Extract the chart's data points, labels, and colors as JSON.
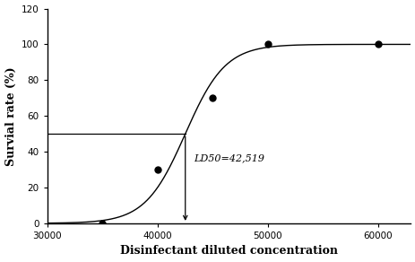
{
  "scatter_x": [
    35000,
    40000,
    45000,
    50000,
    60000
  ],
  "scatter_y": [
    0,
    30,
    70,
    100,
    100
  ],
  "ld50": 42519,
  "ld50_label": "LD50=42,519",
  "xlim": [
    30000,
    63000
  ],
  "ylim": [
    0,
    120
  ],
  "xticks": [
    30000,
    40000,
    50000,
    60000
  ],
  "yticks": [
    0,
    20,
    40,
    60,
    80,
    100,
    120
  ],
  "xlabel": "Disinfectant diluted concentration",
  "ylabel": "Survial rate (%)",
  "line_color": "#000000",
  "scatter_color": "#000000",
  "background_color": "#ffffff",
  "sigmoid_L": 100,
  "sigmoid_k": 0.00055,
  "sigmoid_x0": 42519,
  "hline_y": 50,
  "annotation_fontsize": 8,
  "xlabel_fontsize": 9,
  "ylabel_fontsize": 9,
  "tick_fontsize": 7.5
}
